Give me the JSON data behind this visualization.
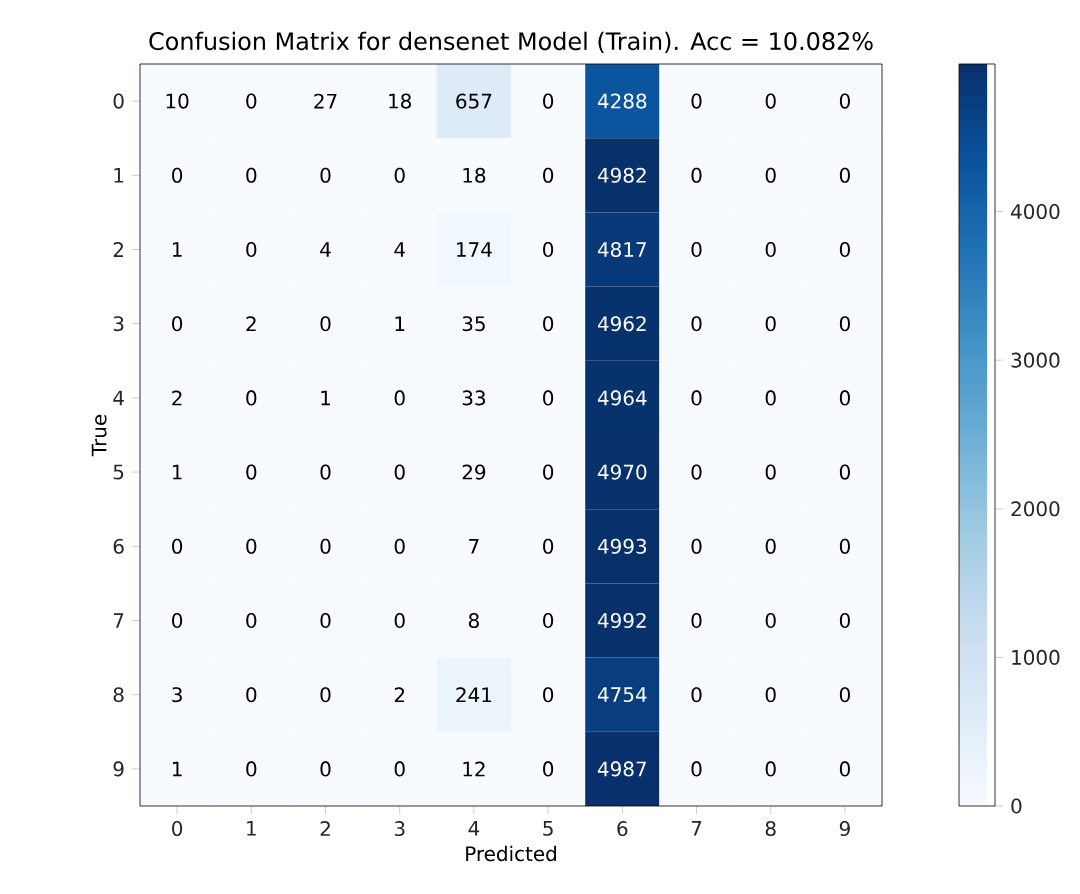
{
  "chart_data": {
    "type": "heatmap",
    "title": "Confusion Matrix for densenet Model (Train). Acc = 10.082%",
    "xlabel": "Predicted",
    "ylabel": "True",
    "categories": [
      "0",
      "1",
      "2",
      "3",
      "4",
      "5",
      "6",
      "7",
      "8",
      "9"
    ],
    "y_categories": [
      "0",
      "1",
      "2",
      "3",
      "4",
      "5",
      "6",
      "7",
      "8",
      "9"
    ],
    "cells": [
      [
        10,
        0,
        27,
        18,
        657,
        0,
        4288,
        0,
        0,
        0
      ],
      [
        0,
        0,
        0,
        0,
        18,
        0,
        4982,
        0,
        0,
        0
      ],
      [
        1,
        0,
        4,
        4,
        174,
        0,
        4817,
        0,
        0,
        0
      ],
      [
        0,
        2,
        0,
        1,
        35,
        0,
        4962,
        0,
        0,
        0
      ],
      [
        2,
        0,
        1,
        0,
        33,
        0,
        4964,
        0,
        0,
        0
      ],
      [
        1,
        0,
        0,
        0,
        29,
        0,
        4970,
        0,
        0,
        0
      ],
      [
        0,
        0,
        0,
        0,
        7,
        0,
        4993,
        0,
        0,
        0
      ],
      [
        0,
        0,
        0,
        0,
        8,
        0,
        4992,
        0,
        0,
        0
      ],
      [
        3,
        0,
        0,
        2,
        241,
        0,
        4754,
        0,
        0,
        0
      ],
      [
        1,
        0,
        0,
        0,
        12,
        0,
        4987,
        0,
        0,
        0
      ]
    ],
    "clim": [
      0,
      4993
    ],
    "cticks": [
      0,
      1000,
      2000,
      3000,
      4000
    ],
    "data_labels": true
  }
}
